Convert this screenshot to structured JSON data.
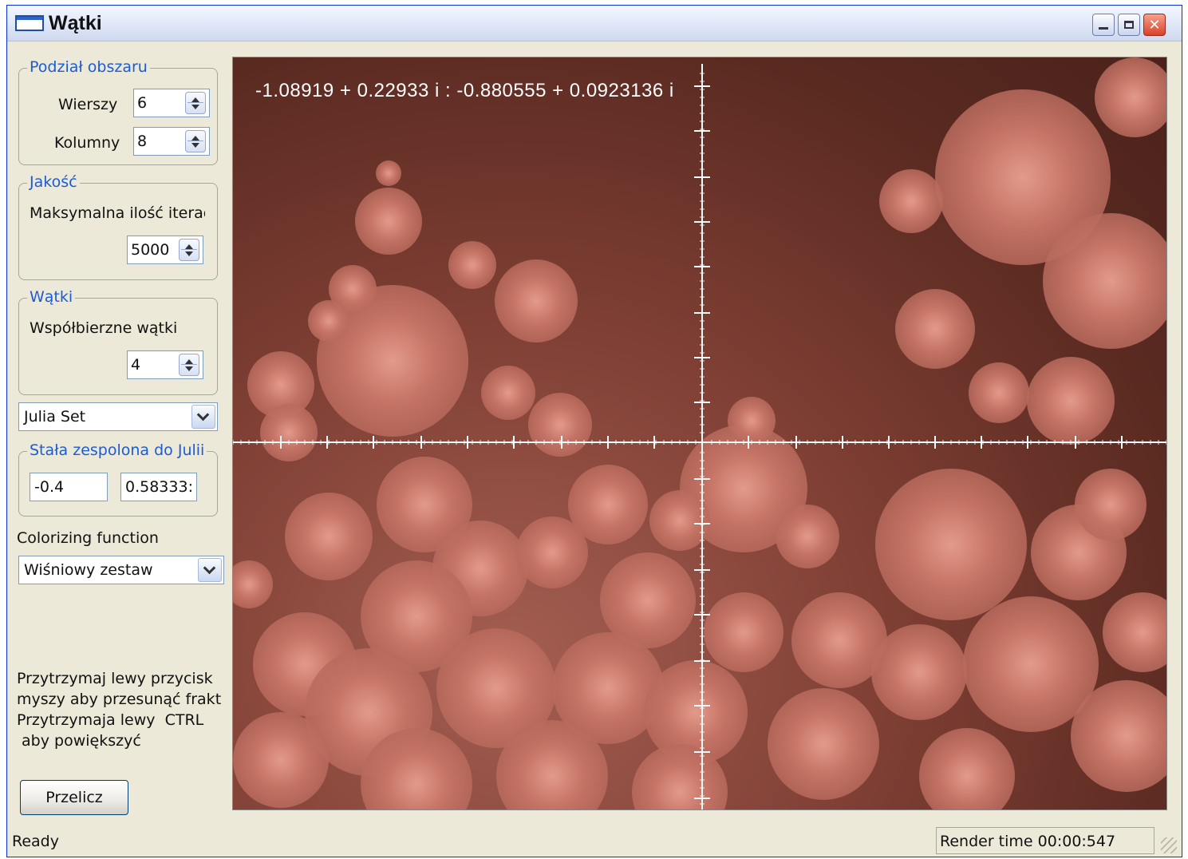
{
  "window": {
    "title": "Wątki"
  },
  "titlebar_buttons": {
    "close_glyph": "✕"
  },
  "panel": {
    "division": {
      "title": "Podział obszaru",
      "rows_label": "Wierszy",
      "rows_value": "6",
      "cols_label": "Kolumny",
      "cols_value": "8"
    },
    "quality": {
      "title": "Jakość",
      "iter_label": "Maksymalna ilość iterac",
      "iter_value": "5000"
    },
    "threads": {
      "title": "Wątki",
      "threads_label": "Współbierzne wątki",
      "threads_value": "4"
    },
    "fractal_select": {
      "selected": "Julia Set"
    },
    "julia_const": {
      "title": "Stała zespolona do Julii",
      "real": "-0.4",
      "imag": "0.58333:"
    },
    "colorizing": {
      "label": "Colorizing function",
      "selected": "Wiśniowy zestaw"
    },
    "hint": "Przytrzymaj lewy przycisk\nmyszy aby przesunąć frakt\nPrzytrzymaja lewy  CTRL\n aby powiększyć",
    "recalc_button": "Przelicz"
  },
  "canvas": {
    "coords_text": "-1.08919 + 0.22933 i : -0.880555 + 0.0923136 i"
  },
  "colors": {
    "fractal_background": "#5a2a21",
    "fractal_fill": "#c9786a",
    "groupbox_title": "#1c5bd6",
    "window_face": "#ece9d8"
  },
  "status": {
    "text": "Ready",
    "render_time": "Render time 00:00:547"
  }
}
